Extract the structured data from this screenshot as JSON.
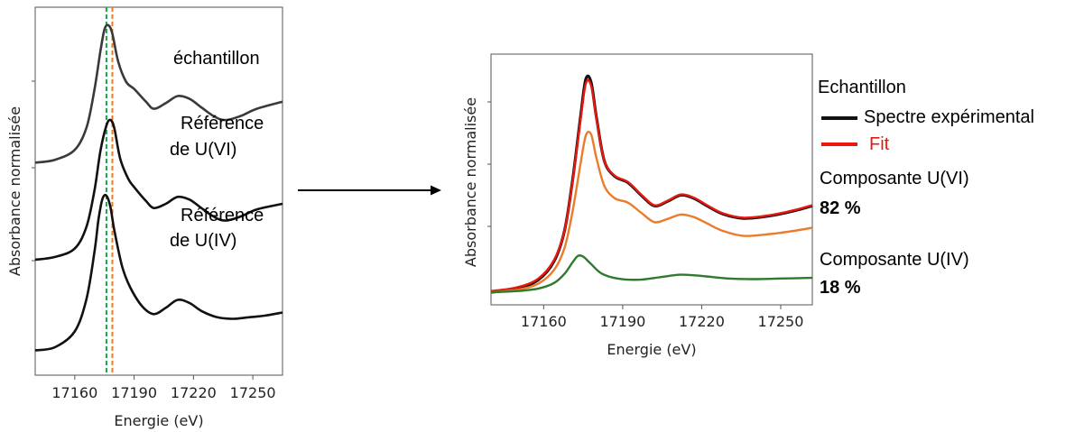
{
  "chart_data": [
    {
      "type": "line",
      "panel": "left",
      "xlabel": "Energie (eV)",
      "ylabel": "Absorbance normalisée",
      "xlim": [
        17140,
        17265
      ],
      "xticks": [
        17160,
        17190,
        17220,
        17250
      ],
      "vlines": [
        {
          "x": 17176,
          "color": "#1fa04f",
          "style": "dashed"
        },
        {
          "x": 17179,
          "color": "#ea7a2a",
          "style": "dashed"
        }
      ],
      "series": [
        {
          "name": "échantillon",
          "color": "#3a3a3a",
          "x": [
            17140,
            17150,
            17160,
            17166,
            17170,
            17173,
            17175,
            17177,
            17179,
            17182,
            17186,
            17190,
            17196,
            17200,
            17206,
            17212,
            17218,
            17224,
            17230,
            17236,
            17244,
            17252,
            17265
          ],
          "y": [
            0.03,
            0.05,
            0.12,
            0.28,
            0.55,
            0.82,
            0.97,
            1.0,
            0.94,
            0.74,
            0.6,
            0.55,
            0.46,
            0.41,
            0.45,
            0.5,
            0.48,
            0.42,
            0.36,
            0.33,
            0.36,
            0.41,
            0.46
          ]
        },
        {
          "name": "Référence de U(VI)",
          "color": "#111111",
          "x": [
            17140,
            17150,
            17160,
            17166,
            17170,
            17173,
            17176,
            17178,
            17180,
            17183,
            17187,
            17190,
            17196,
            17200,
            17206,
            17212,
            17218,
            17224,
            17230,
            17236,
            17244,
            17252,
            17265
          ],
          "y": [
            0.0,
            0.02,
            0.08,
            0.24,
            0.5,
            0.78,
            0.96,
            1.0,
            0.94,
            0.72,
            0.58,
            0.52,
            0.42,
            0.37,
            0.4,
            0.45,
            0.43,
            0.37,
            0.31,
            0.28,
            0.31,
            0.36,
            0.4
          ]
        },
        {
          "name": "Référence de U(IV)",
          "color": "#111111",
          "x": [
            17140,
            17150,
            17160,
            17166,
            17170,
            17172,
            17174,
            17176,
            17178,
            17180,
            17184,
            17188,
            17194,
            17200,
            17206,
            17212,
            17218,
            17224,
            17232,
            17240,
            17248,
            17256,
            17265
          ],
          "y": [
            0.02,
            0.04,
            0.14,
            0.35,
            0.65,
            0.85,
            0.98,
            1.0,
            0.93,
            0.78,
            0.55,
            0.42,
            0.3,
            0.25,
            0.29,
            0.34,
            0.32,
            0.27,
            0.23,
            0.22,
            0.23,
            0.24,
            0.26
          ]
        }
      ]
    },
    {
      "type": "line",
      "panel": "right",
      "xlabel": "Energie (eV)",
      "ylabel": "Absorbance normalisée",
      "xlim": [
        17140,
        17262
      ],
      "ylim": [
        -0.2,
        3.8
      ],
      "xticks": [
        17160,
        17190,
        17220,
        17250
      ],
      "series": [
        {
          "name": "Spectre expérimental",
          "color": "#111111",
          "x": [
            17140,
            17150,
            17158,
            17164,
            17168,
            17171,
            17174,
            17176,
            17178,
            17180,
            17183,
            17187,
            17192,
            17197,
            17202,
            17207,
            17212,
            17217,
            17222,
            17228,
            17236,
            17246,
            17255,
            17262
          ],
          "y": [
            0.0,
            0.06,
            0.2,
            0.5,
            1.0,
            1.8,
            2.8,
            3.4,
            3.35,
            2.8,
            2.1,
            1.85,
            1.75,
            1.55,
            1.38,
            1.45,
            1.55,
            1.5,
            1.38,
            1.25,
            1.18,
            1.22,
            1.3,
            1.38
          ]
        },
        {
          "name": "Fit",
          "color": "#e8170f",
          "x": [
            17140,
            17150,
            17158,
            17164,
            17168,
            17171,
            17174,
            17176,
            17178,
            17180,
            17183,
            17187,
            17192,
            17197,
            17202,
            17207,
            17212,
            17217,
            17222,
            17228,
            17236,
            17246,
            17255,
            17262
          ],
          "y": [
            0.02,
            0.08,
            0.22,
            0.52,
            1.0,
            1.78,
            2.75,
            3.33,
            3.3,
            2.78,
            2.1,
            1.86,
            1.76,
            1.56,
            1.39,
            1.46,
            1.56,
            1.51,
            1.39,
            1.26,
            1.19,
            1.23,
            1.31,
            1.39
          ]
        },
        {
          "name": "Composante U(VI)",
          "color": "#ec7b2c",
          "x": [
            17140,
            17150,
            17158,
            17164,
            17168,
            17171,
            17174,
            17176,
            17178,
            17180,
            17183,
            17187,
            17192,
            17197,
            17202,
            17207,
            17212,
            17217,
            17222,
            17228,
            17236,
            17246,
            17255,
            17262
          ],
          "y": [
            0.0,
            0.04,
            0.14,
            0.36,
            0.72,
            1.3,
            2.05,
            2.5,
            2.52,
            2.15,
            1.7,
            1.5,
            1.43,
            1.27,
            1.12,
            1.17,
            1.24,
            1.2,
            1.1,
            0.98,
            0.9,
            0.93,
            0.98,
            1.03
          ]
        },
        {
          "name": "Composante U(IV)",
          "color": "#2f7a2d",
          "x": [
            17140,
            17150,
            17158,
            17164,
            17168,
            17171,
            17173,
            17175,
            17178,
            17182,
            17188,
            17196,
            17204,
            17212,
            17220,
            17230,
            17240,
            17250,
            17262
          ],
          "y": [
            0.0,
            0.02,
            0.06,
            0.15,
            0.3,
            0.48,
            0.58,
            0.57,
            0.45,
            0.3,
            0.22,
            0.2,
            0.24,
            0.28,
            0.26,
            0.22,
            0.21,
            0.22,
            0.23
          ]
        }
      ]
    }
  ],
  "left_labels": {
    "sample": "échantillon",
    "ref_vi_1": "Référence",
    "ref_vi_2": "de U(VI)",
    "ref_iv_1": "Référence",
    "ref_iv_2": "de U(IV)"
  },
  "legend": {
    "title": "Echantillon",
    "exp": "Spectre expérimental",
    "fit": "Fit",
    "comp_vi": "Composante U(VI)",
    "comp_vi_pct": "82 %",
    "comp_iv": "Composante U(IV)",
    "comp_iv_pct": "18 %"
  },
  "colors": {
    "exp": "#111111",
    "fit": "#e8170f",
    "uvi": "#ec7b2c",
    "uiv": "#2f7a2d",
    "sample": "#3a3a3a"
  }
}
